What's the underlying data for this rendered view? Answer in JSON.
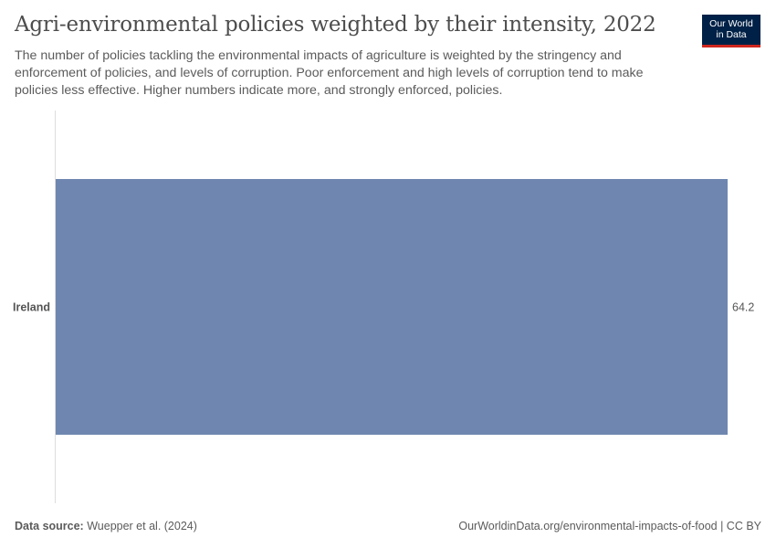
{
  "header": {
    "title": "Agri-environmental policies weighted by their intensity, 2022",
    "subtitle": "The number of policies tackling the environmental impacts of agriculture is weighted by the stringency and enforcement of policies, and levels of corruption. Poor enforcement and high levels of corruption tend to make policies less effective. Higher numbers indicate more, and strongly enforced, policies."
  },
  "logo": {
    "line1": "Our World",
    "line2": "in Data",
    "bg_color": "#002147",
    "accent_color": "#ce261e"
  },
  "chart_data": {
    "type": "bar",
    "orientation": "horizontal",
    "categories": [
      "Ireland"
    ],
    "values": [
      64.2
    ],
    "value_labels": [
      "64.2"
    ],
    "bar_color": "#6f87b0",
    "xlim": [
      0,
      64.2
    ],
    "grid": false,
    "legend": "none"
  },
  "footer": {
    "source_label": "Data source:",
    "source_text": "Wuepper et al. (2024)",
    "right_text": "OurWorldinData.org/environmental-impacts-of-food | CC BY"
  }
}
